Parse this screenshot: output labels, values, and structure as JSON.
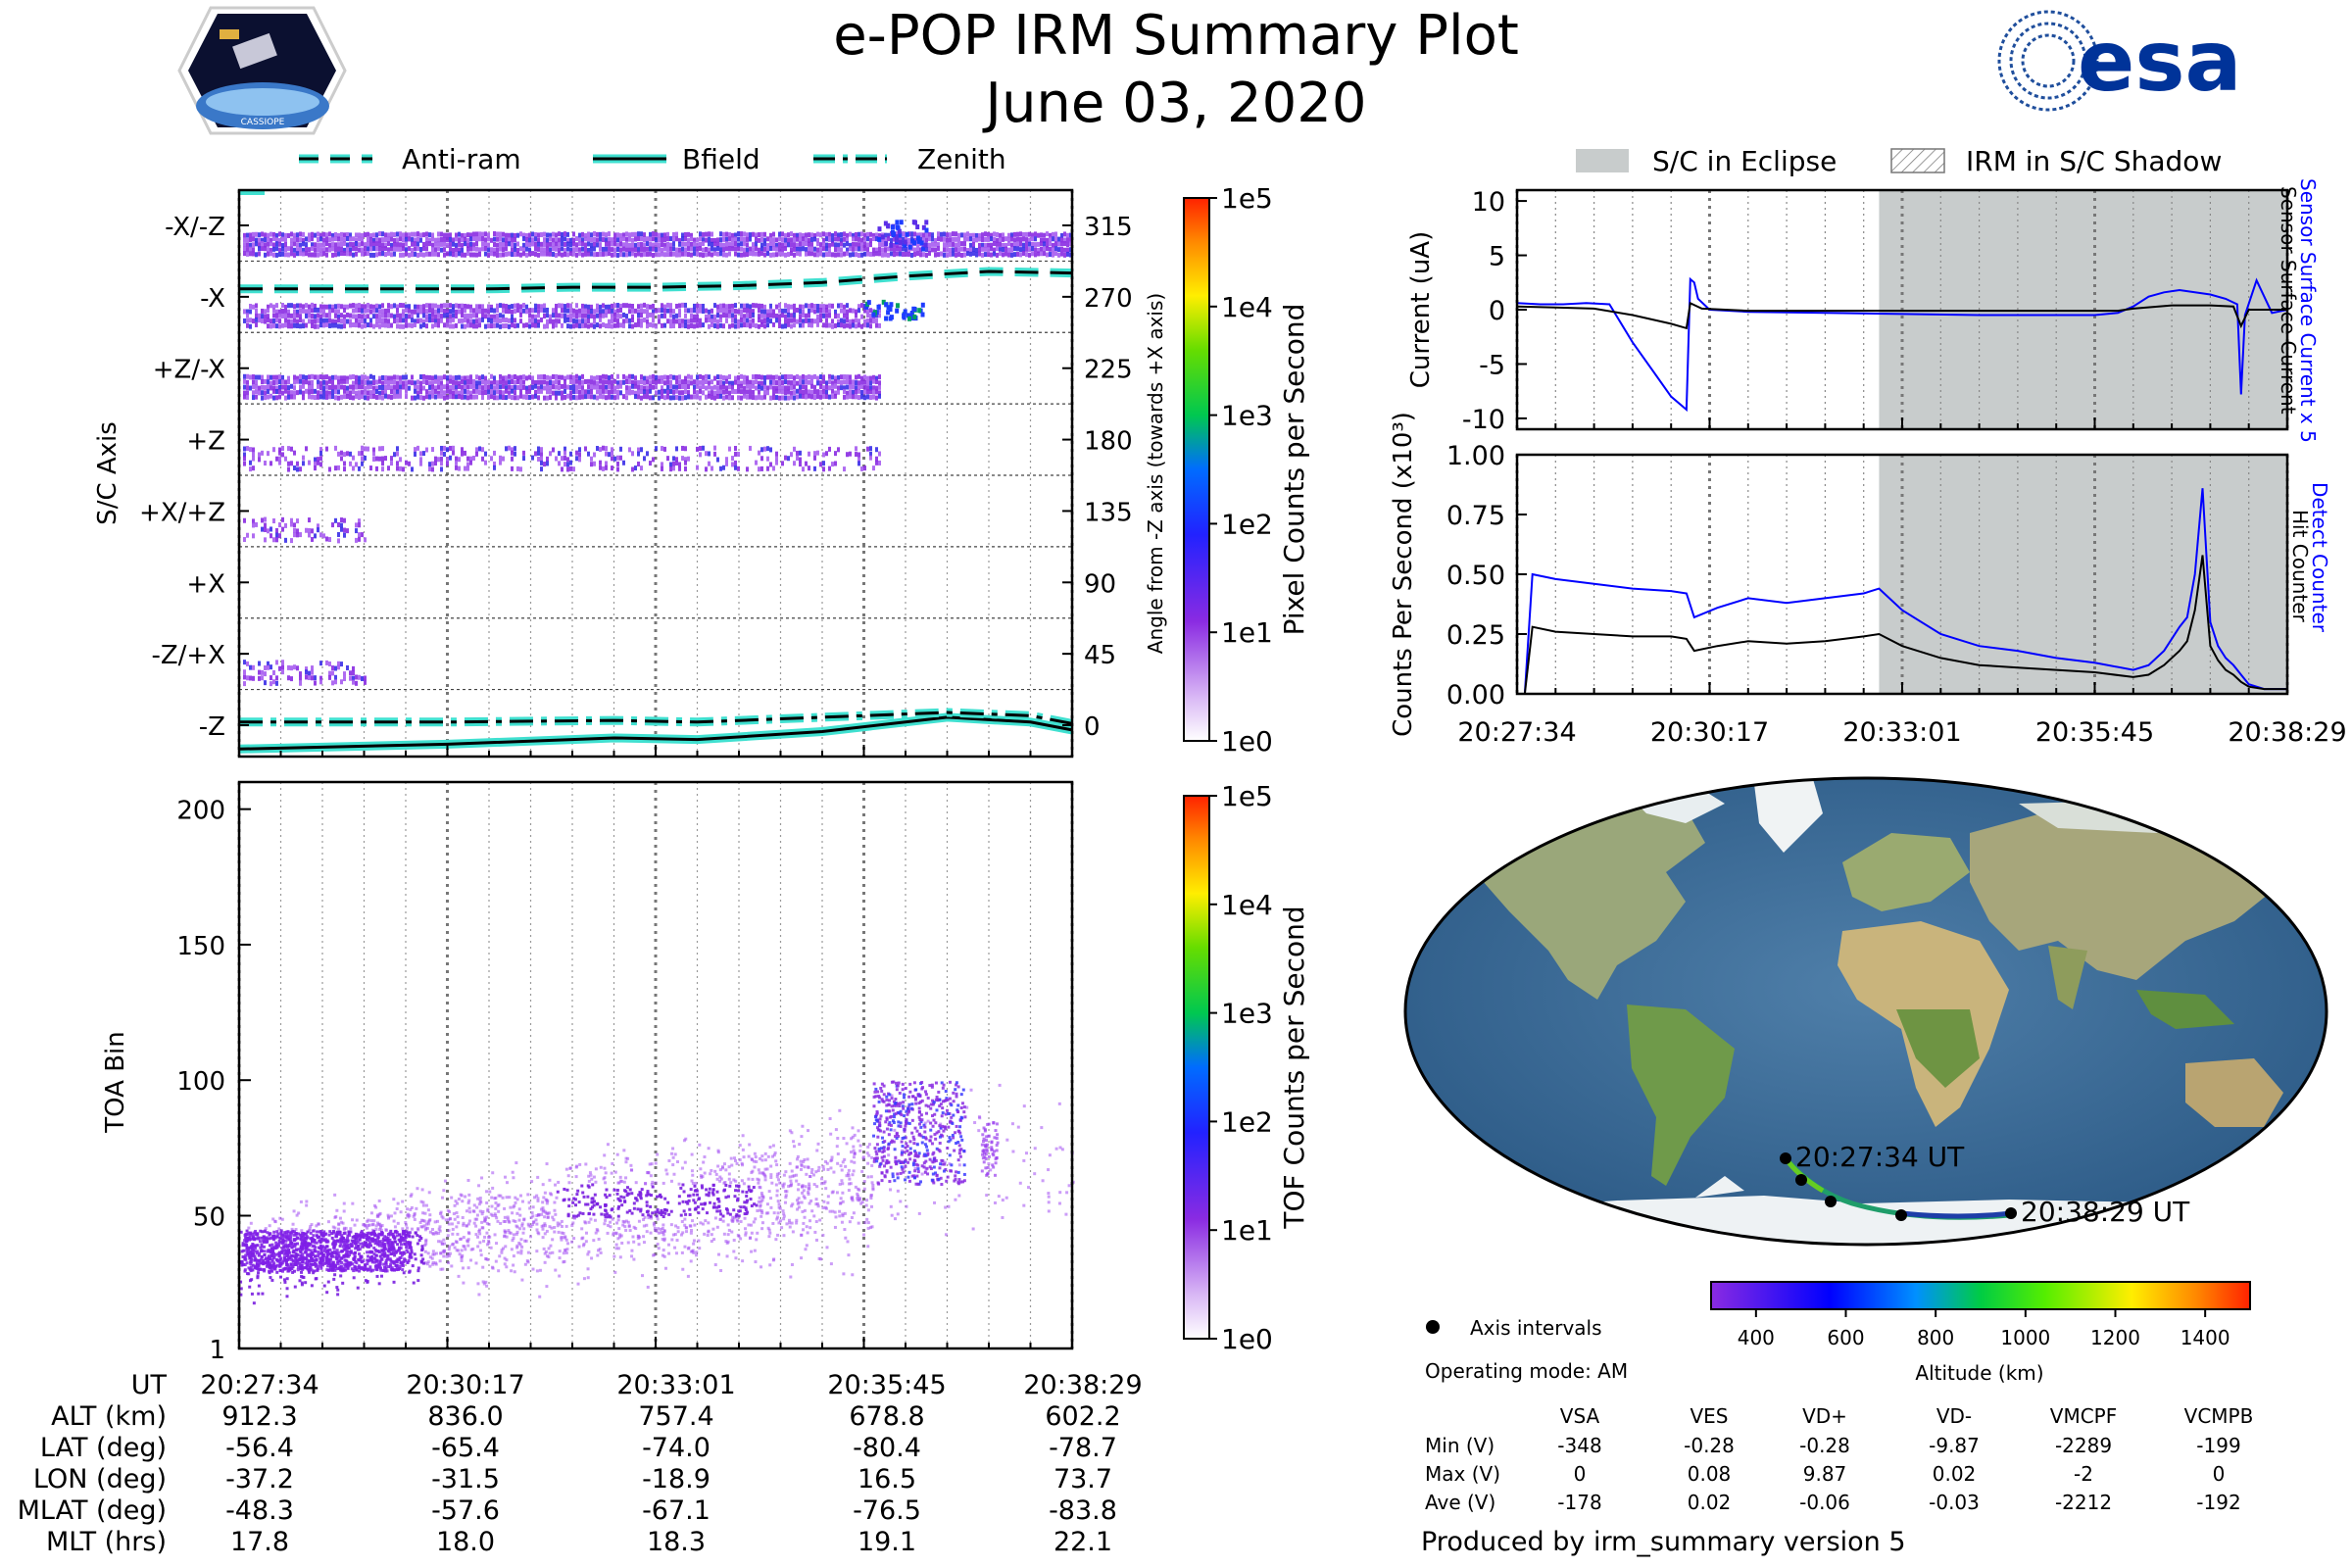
{
  "title": "e-POP IRM Summary Plot",
  "date": "June 03, 2020",
  "logos": {
    "cassiope": "CASSIOPE",
    "esa": "esa"
  },
  "top_legend": {
    "items": [
      "Anti-ram",
      "Bfield",
      "Zenith"
    ]
  },
  "right_legend": {
    "items": [
      "S/C in Eclipse",
      "IRM in S/C Shadow"
    ]
  },
  "time_ticks": [
    "20:27:34",
    "20:30:17",
    "20:33:01",
    "20:35:45",
    "20:38:29"
  ],
  "colors": {
    "purple": "#8a2be2",
    "cyan": "#40e0d0",
    "blue": "#0000ff",
    "eclipse": "#c8cccc"
  },
  "chart_data": [
    {
      "type": "heatmap",
      "name": "sc-axis-panel",
      "ylabel": "S/C Axis",
      "right_label": "Angle from -Z axis (towards +X axis)",
      "axis_labels": [
        "-X/-Z",
        "-X",
        "+Z/-X",
        "+Z",
        "+X/+Z",
        "+X",
        "-Z/+X",
        "-Z"
      ],
      "angle_ticks": [
        "315",
        "270",
        "225",
        "180",
        "135",
        "90",
        "45",
        "0"
      ],
      "colorbar": {
        "label": "Pixel Counts per Second",
        "ticks": [
          "1e5",
          "1e4",
          "1e3",
          "1e2",
          "1e1",
          "1e0"
        ]
      },
      "lines": [
        {
          "name": "Anti-ram",
          "style": "dashed",
          "x": [
            0,
            0.1,
            0.2,
            0.3,
            0.4,
            0.5,
            0.6,
            0.7,
            0.8,
            0.9,
            1.0
          ],
          "y": [
            275,
            275,
            275,
            275,
            276,
            276,
            277,
            279,
            283,
            286,
            285
          ]
        },
        {
          "name": "Bfield",
          "style": "solid",
          "x": [
            0,
            0.25,
            0.45,
            0.55,
            0.7,
            0.85,
            0.95,
            1.0
          ],
          "y": [
            -15,
            -12,
            -8,
            -9,
            -4,
            5,
            2,
            -3
          ]
        },
        {
          "name": "Zenith",
          "style": "dashdot",
          "x": [
            0,
            0.25,
            0.45,
            0.55,
            0.7,
            0.85,
            0.95,
            1.0
          ],
          "y": [
            2,
            2,
            3,
            2,
            5,
            8,
            6,
            1
          ]
        }
      ]
    },
    {
      "type": "heatmap",
      "name": "toa-panel",
      "ylabel": "TOA Bin",
      "yticks": [
        "1",
        "50",
        "100",
        "150",
        "200"
      ],
      "ylim": [
        1,
        210
      ],
      "colorbar": {
        "label": "TOF Counts per Second",
        "ticks": [
          "1e5",
          "1e4",
          "1e3",
          "1e2",
          "1e1",
          "1e0"
        ]
      }
    },
    {
      "type": "line",
      "name": "current-panel",
      "ylabel": "Current (uA)",
      "yticks": [
        "10",
        "5",
        "0",
        "-5",
        "-10"
      ],
      "ylim": [
        -11,
        11
      ],
      "right_labels": [
        "Sensor Surface Current x 5",
        "Sensor Surface Current"
      ],
      "eclipse_start": 0.47,
      "series": [
        {
          "name": "Sensor Surface Current x 5",
          "color": "#0000ff",
          "x": [
            0,
            0.03,
            0.06,
            0.09,
            0.12,
            0.15,
            0.18,
            0.2,
            0.22,
            0.225,
            0.23,
            0.235,
            0.25,
            0.3,
            0.4,
            0.5,
            0.6,
            0.7,
            0.75,
            0.78,
            0.8,
            0.82,
            0.84,
            0.86,
            0.9,
            0.92,
            0.935,
            0.94,
            0.945,
            0.96,
            0.98,
            1.0
          ],
          "y": [
            0.6,
            0.5,
            0.5,
            0.6,
            0.5,
            -3,
            -6,
            -8,
            -9.2,
            2.8,
            2.5,
            1,
            0,
            -0.2,
            -0.3,
            -0.4,
            -0.5,
            -0.5,
            -0.5,
            -0.3,
            0.3,
            1.2,
            1.6,
            1.8,
            1.4,
            1,
            0.5,
            -7.8,
            -0.5,
            2.7,
            -0.3,
            0
          ]
        },
        {
          "name": "Sensor Surface Current",
          "color": "#000000",
          "x": [
            0,
            0.05,
            0.1,
            0.15,
            0.2,
            0.22,
            0.225,
            0.24,
            0.3,
            0.5,
            0.7,
            0.78,
            0.8,
            0.85,
            0.9,
            0.93,
            0.94,
            0.95,
            1.0
          ],
          "y": [
            0.3,
            0.2,
            0.1,
            -0.5,
            -1.3,
            -1.7,
            0.6,
            0.1,
            -0.1,
            -0.1,
            -0.1,
            -0.1,
            0.1,
            0.4,
            0.4,
            0.3,
            -1.5,
            0,
            0
          ]
        }
      ]
    },
    {
      "type": "line",
      "name": "counts-panel",
      "ylabel": "Counts Per Second (x10³)",
      "yticks": [
        "1.00",
        "0.75",
        "0.50",
        "0.25",
        "0.00"
      ],
      "ylim": [
        0,
        1
      ],
      "right_labels": [
        "Detect Counter",
        "Hit Counter"
      ],
      "eclipse_start": 0.47,
      "series": [
        {
          "name": "Detect Counter",
          "color": "#0000ff",
          "x": [
            0,
            0.01,
            0.02,
            0.05,
            0.1,
            0.15,
            0.2,
            0.22,
            0.23,
            0.26,
            0.3,
            0.35,
            0.4,
            0.45,
            0.47,
            0.5,
            0.55,
            0.6,
            0.65,
            0.7,
            0.75,
            0.8,
            0.82,
            0.84,
            0.86,
            0.87,
            0.88,
            0.89,
            0.9,
            0.91,
            0.92,
            0.93,
            0.94,
            0.95,
            0.97,
            1.0
          ],
          "y": [
            0,
            0,
            0.5,
            0.48,
            0.46,
            0.44,
            0.43,
            0.42,
            0.32,
            0.36,
            0.4,
            0.38,
            0.4,
            0.42,
            0.44,
            0.35,
            0.25,
            0.2,
            0.18,
            0.15,
            0.13,
            0.1,
            0.12,
            0.18,
            0.28,
            0.32,
            0.5,
            0.86,
            0.3,
            0.2,
            0.15,
            0.12,
            0.08,
            0.04,
            0.02,
            0.02
          ]
        },
        {
          "name": "Hit Counter",
          "color": "#000000",
          "x": [
            0,
            0.01,
            0.02,
            0.05,
            0.1,
            0.15,
            0.2,
            0.22,
            0.23,
            0.26,
            0.3,
            0.35,
            0.4,
            0.45,
            0.47,
            0.5,
            0.55,
            0.6,
            0.65,
            0.7,
            0.75,
            0.8,
            0.82,
            0.84,
            0.86,
            0.87,
            0.88,
            0.89,
            0.9,
            0.91,
            0.92,
            0.93,
            0.94,
            0.95,
            0.97,
            1.0
          ],
          "y": [
            0,
            0,
            0.28,
            0.26,
            0.25,
            0.24,
            0.24,
            0.23,
            0.18,
            0.2,
            0.22,
            0.21,
            0.22,
            0.24,
            0.25,
            0.2,
            0.15,
            0.12,
            0.11,
            0.1,
            0.09,
            0.07,
            0.08,
            0.12,
            0.18,
            0.22,
            0.35,
            0.58,
            0.2,
            0.14,
            0.1,
            0.08,
            0.05,
            0.03,
            0.02,
            0.02
          ]
        }
      ]
    }
  ],
  "map": {
    "start_label": "20:27:34 UT",
    "end_label": "20:38:29 UT",
    "colorbar": {
      "label": "Altitude (km)",
      "ticks": [
        "400",
        "600",
        "800",
        "1000",
        "1200",
        "1400"
      ]
    }
  },
  "footer": {
    "axis_intervals": "Axis intervals",
    "operating_mode": "Operating mode: AM",
    "produced_by": "Produced by irm_summary version 5",
    "table": {
      "headers": [
        "VSA",
        "VES",
        "VD+",
        "VD-",
        "VMCPF",
        "VCMPB"
      ],
      "rows": [
        {
          "label": "Min (V)",
          "values": [
            "-348",
            "-0.28",
            "-0.28",
            "-9.87",
            "-2289",
            "-199"
          ]
        },
        {
          "label": "Max (V)",
          "values": [
            "0",
            "0.08",
            "9.87",
            "0.02",
            "-2",
            "0"
          ]
        },
        {
          "label": "Ave (V)",
          "values": [
            "-178",
            "0.02",
            "-0.06",
            "-0.03",
            "-2212",
            "-192"
          ]
        }
      ]
    },
    "ephemeris": {
      "rows": [
        {
          "label": "UT",
          "values": [
            "20:27:34",
            "20:30:17",
            "20:33:01",
            "20:35:45",
            "20:38:29"
          ]
        },
        {
          "label": "ALT (km)",
          "values": [
            "912.3",
            "836.0",
            "757.4",
            "678.8",
            "602.2"
          ]
        },
        {
          "label": "LAT (deg)",
          "values": [
            "-56.4",
            "-65.4",
            "-74.0",
            "-80.4",
            "-78.7"
          ]
        },
        {
          "label": "LON (deg)",
          "values": [
            "-37.2",
            "-31.5",
            "-18.9",
            "16.5",
            "73.7"
          ]
        },
        {
          "label": "MLAT (deg)",
          "values": [
            "-48.3",
            "-57.6",
            "-67.1",
            "-76.5",
            "-83.8"
          ]
        },
        {
          "label": "MLT (hrs)",
          "values": [
            "17.8",
            "18.0",
            "18.3",
            "19.1",
            "22.1"
          ]
        }
      ]
    }
  }
}
